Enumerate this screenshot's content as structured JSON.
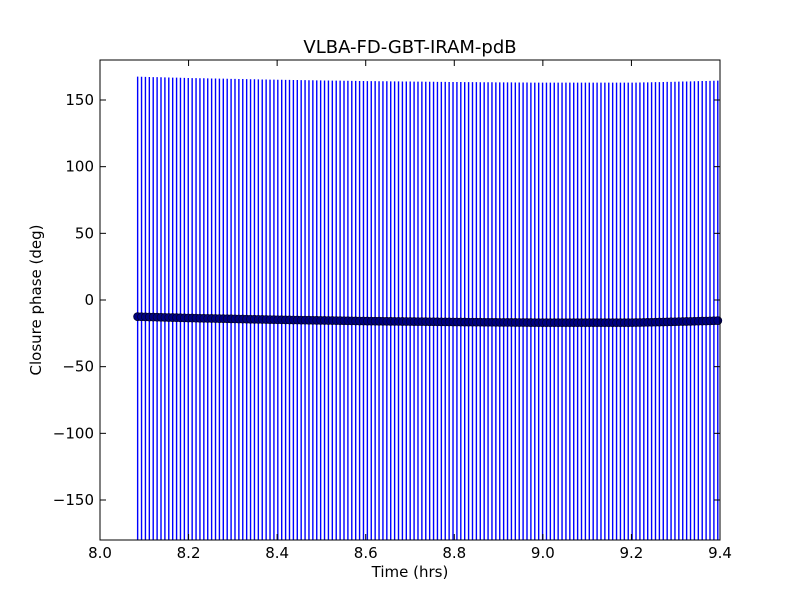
{
  "chart_data": {
    "type": "scatter",
    "title": "VLBA-FD-GBT-IRAM-pdB",
    "xlabel": "Time (hrs)",
    "ylabel": "Closure phase (deg)",
    "xlim": [
      8.0,
      9.4
    ],
    "ylim": [
      -180,
      180
    ],
    "x_ticks": [
      8.0,
      8.2,
      8.4,
      8.6,
      8.8,
      9.0,
      9.2,
      9.4
    ],
    "x_tick_labels": [
      "8.0",
      "8.2",
      "8.4",
      "8.6",
      "8.8",
      "9.0",
      "9.2",
      "9.4"
    ],
    "y_ticks": [
      150,
      100,
      50,
      0,
      -50,
      -100,
      -150
    ],
    "y_tick_labels": [
      "150",
      "100",
      "50",
      "0",
      "−50",
      "−100",
      "−150"
    ],
    "grid": false,
    "errorbar_color": "#0000ff",
    "marker_color": "#000080",
    "x_start": 8.085,
    "x_end": 9.395,
    "point_count": 150,
    "y_profile": [
      [
        8.085,
        -12.5
      ],
      [
        8.2,
        -13.5
      ],
      [
        8.4,
        -14.8
      ],
      [
        8.6,
        -15.8
      ],
      [
        8.8,
        -16.5
      ],
      [
        9.0,
        -17.0
      ],
      [
        9.2,
        -17.0
      ],
      [
        9.3,
        -16.3
      ],
      [
        9.395,
        -15.5
      ]
    ],
    "y_error": 180
  }
}
